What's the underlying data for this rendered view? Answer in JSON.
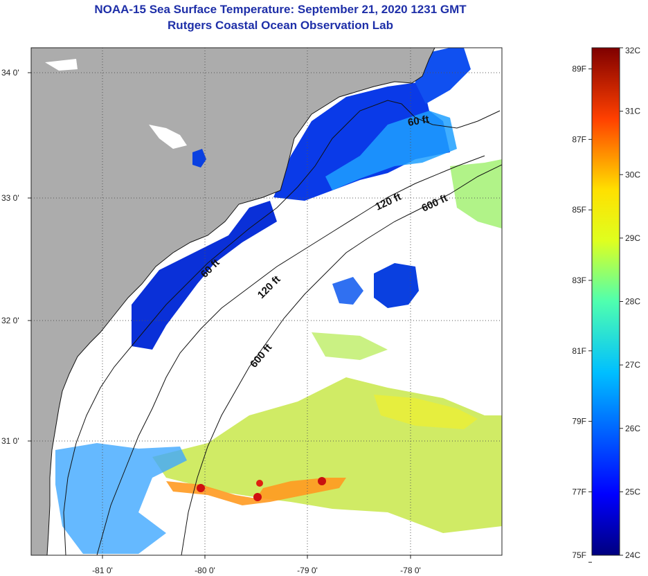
{
  "header": {
    "title": "NOAA-15 Sea Surface Temperature:  September 21, 2020 1231 GMT",
    "subtitle": "Rutgers Coastal Ocean Observation Lab"
  },
  "map": {
    "lat_ticks": [
      "34 0'",
      "33 0'",
      "32 0'",
      "31 0'"
    ],
    "lon_ticks": [
      "-81 0'",
      "-80 0'",
      "-79 0'",
      "-78 0'"
    ],
    "contour_labels": [
      "60 ft",
      "120 ft",
      "600 ft",
      "60 ft",
      "120 ft",
      "600 ft"
    ],
    "colors": {
      "land": "#acacac",
      "cloud": "#ffffff"
    }
  },
  "colorbar": {
    "celsius": [
      "32C",
      "31C",
      "30C",
      "29C",
      "28C",
      "27C",
      "26C",
      "25C",
      "24C"
    ],
    "fahrenheit": [
      "89F",
      "87F",
      "85F",
      "83F",
      "81F",
      "79F",
      "77F",
      "75F"
    ]
  }
}
